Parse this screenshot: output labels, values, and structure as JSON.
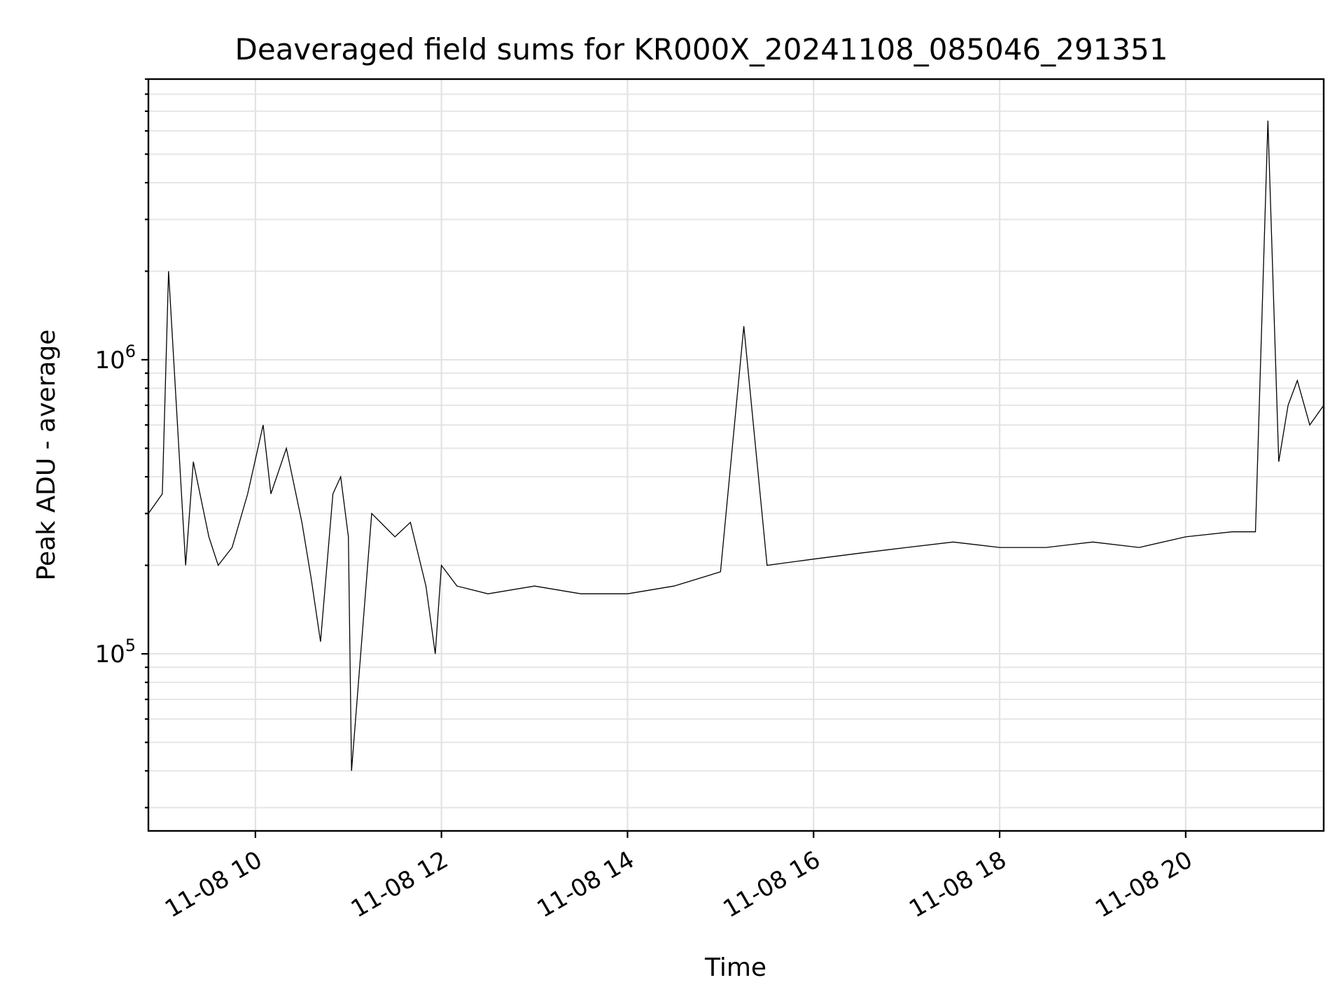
{
  "chart_data": {
    "type": "line",
    "title": "Deaveraged field sums for KR000X_20241108_085046_291351",
    "xlabel": "Time",
    "ylabel": "Peak ADU - average",
    "x_axis": {
      "kind": "datetime",
      "range": [
        "2024-11-08 08:51",
        "2024-11-08 21:29"
      ],
      "ticks": [
        {
          "value": "2024-11-08 10:00",
          "label": "11-08 10"
        },
        {
          "value": "2024-11-08 12:00",
          "label": "11-08 12"
        },
        {
          "value": "2024-11-08 14:00",
          "label": "11-08 14"
        },
        {
          "value": "2024-11-08 16:00",
          "label": "11-08 16"
        },
        {
          "value": "2024-11-08 18:00",
          "label": "11-08 18"
        },
        {
          "value": "2024-11-08 20:00",
          "label": "11-08 20"
        }
      ],
      "tick_label_rotation_deg": 30
    },
    "y_axis": {
      "scale": "log",
      "range": [
        25000,
        9000000
      ],
      "ticks": [
        {
          "value": 100000,
          "base": "10",
          "exponent": "5"
        },
        {
          "value": 1000000,
          "base": "10",
          "exponent": "6"
        }
      ]
    },
    "grid": true,
    "line_color": "#000000",
    "series": [
      {
        "x": [
          "2024-11-08 08:51",
          "2024-11-08 09:00",
          "2024-11-08 09:04",
          "2024-11-08 09:15",
          "2024-11-08 09:20",
          "2024-11-08 09:30",
          "2024-11-08 09:36",
          "2024-11-08 09:45",
          "2024-11-08 09:55",
          "2024-11-08 10:05",
          "2024-11-08 10:10",
          "2024-11-08 10:20",
          "2024-11-08 10:30",
          "2024-11-08 10:36",
          "2024-11-08 10:42",
          "2024-11-08 10:50",
          "2024-11-08 10:55",
          "2024-11-08 11:00",
          "2024-11-08 11:02",
          "2024-11-08 11:15",
          "2024-11-08 11:30",
          "2024-11-08 11:40",
          "2024-11-08 11:50",
          "2024-11-08 11:56",
          "2024-11-08 12:00",
          "2024-11-08 12:10",
          "2024-11-08 12:30",
          "2024-11-08 13:00",
          "2024-11-08 13:30",
          "2024-11-08 14:00",
          "2024-11-08 14:30",
          "2024-11-08 15:00",
          "2024-11-08 15:15",
          "2024-11-08 15:30",
          "2024-11-08 16:00",
          "2024-11-08 16:30",
          "2024-11-08 17:00",
          "2024-11-08 17:30",
          "2024-11-08 18:00",
          "2024-11-08 18:30",
          "2024-11-08 19:00",
          "2024-11-08 19:30",
          "2024-11-08 20:00",
          "2024-11-08 20:30",
          "2024-11-08 20:45",
          "2024-11-08 20:53",
          "2024-11-08 21:00",
          "2024-11-08 21:06",
          "2024-11-08 21:12",
          "2024-11-08 21:20",
          "2024-11-08 21:29"
        ],
        "y": [
          300000,
          350000,
          2000000,
          200000,
          450000,
          250000,
          200000,
          230000,
          350000,
          600000,
          350000,
          500000,
          280000,
          180000,
          110000,
          350000,
          400000,
          250000,
          40000,
          300000,
          250000,
          280000,
          170000,
          100000,
          200000,
          170000,
          160000,
          170000,
          160000,
          160000,
          170000,
          190000,
          1300000,
          200000,
          210000,
          220000,
          230000,
          240000,
          230000,
          230000,
          240000,
          230000,
          250000,
          260000,
          260000,
          6500000,
          450000,
          700000,
          850000,
          600000,
          700000
        ]
      }
    ]
  }
}
